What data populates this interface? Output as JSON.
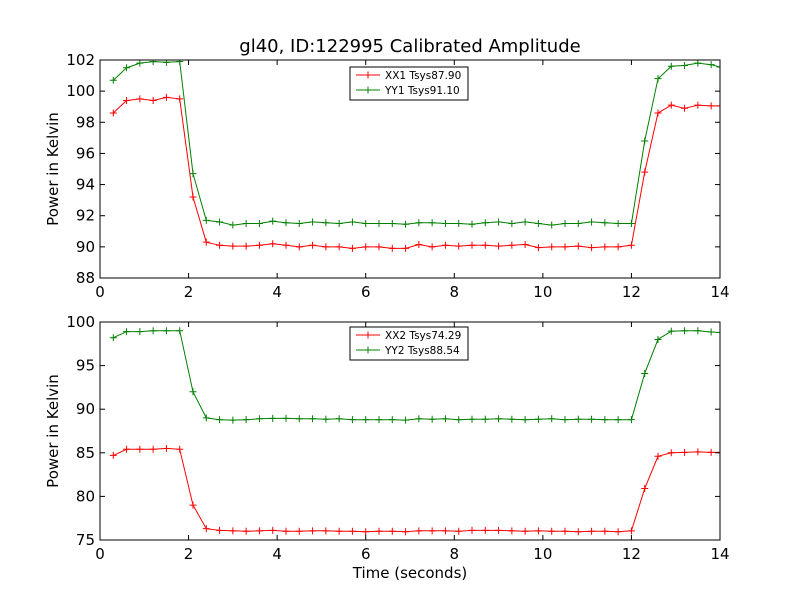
{
  "chart_data": {
    "title": "gl40, ID:122995 Calibrated Amplitude",
    "xlabel": "Time (seconds)",
    "colors": {
      "red": "#ff0000",
      "green": "#008000"
    },
    "x": [
      0.3,
      0.6,
      0.9,
      1.2,
      1.5,
      1.8,
      2.1,
      2.4,
      2.7,
      3.0,
      3.3,
      3.6,
      3.9,
      4.2,
      4.5,
      4.8,
      5.1,
      5.4,
      5.7,
      6.0,
      6.3,
      6.6,
      6.9,
      7.2,
      7.5,
      7.8,
      8.1,
      8.4,
      8.7,
      9.0,
      9.3,
      9.6,
      9.9,
      10.2,
      10.5,
      10.8,
      11.1,
      11.4,
      11.7,
      12.0,
      12.3,
      12.6,
      12.9,
      13.2,
      13.5,
      13.8,
      14.0
    ],
    "subplots": [
      {
        "type": "line",
        "ylabel": "Power in Kelvin",
        "xlim": [
          0,
          14
        ],
        "ylim": [
          88,
          102
        ],
        "xticks": [
          "0",
          "2",
          "4",
          "6",
          "8",
          "10",
          "12",
          "14"
        ],
        "yticks": [
          "88",
          "90",
          "92",
          "94",
          "96",
          "98",
          "100",
          "102"
        ],
        "series": [
          {
            "name": "XX1 Tsys87.90",
            "color": "#ff0000",
            "values": [
              98.6,
              99.4,
              99.5,
              99.4,
              99.6,
              99.5,
              93.2,
              90.3,
              90.1,
              90.05,
              90.05,
              90.1,
              90.2,
              90.1,
              90.0,
              90.1,
              90.0,
              90.0,
              89.9,
              90.0,
              90.0,
              89.9,
              89.9,
              90.15,
              90.0,
              90.1,
              90.05,
              90.1,
              90.1,
              90.05,
              90.1,
              90.15,
              89.95,
              90.0,
              90.0,
              90.05,
              89.95,
              90.0,
              90.0,
              90.1,
              94.8,
              98.6,
              99.1,
              98.9,
              99.1,
              99.05,
              99.05
            ]
          },
          {
            "name": "YY1 Tsys91.10",
            "color": "#008000",
            "values": [
              100.7,
              101.5,
              101.8,
              101.9,
              101.85,
              101.9,
              94.7,
              91.7,
              91.6,
              91.4,
              91.5,
              91.5,
              91.65,
              91.55,
              91.5,
              91.6,
              91.55,
              91.5,
              91.6,
              91.5,
              91.5,
              91.5,
              91.45,
              91.55,
              91.55,
              91.5,
              91.5,
              91.45,
              91.55,
              91.6,
              91.5,
              91.6,
              91.5,
              91.4,
              91.5,
              91.5,
              91.6,
              91.55,
              91.5,
              91.5,
              96.8,
              100.8,
              101.6,
              101.65,
              101.8,
              101.7,
              101.55
            ]
          }
        ]
      },
      {
        "type": "line",
        "ylabel": "Power in Kelvin",
        "xlim": [
          0,
          14
        ],
        "ylim": [
          75,
          100
        ],
        "xticks": [
          "0",
          "2",
          "4",
          "6",
          "8",
          "10",
          "12",
          "14"
        ],
        "yticks": [
          "75",
          "80",
          "85",
          "90",
          "95",
          "100"
        ],
        "series": [
          {
            "name": "XX2 Tsys74.29",
            "color": "#ff0000",
            "values": [
              84.7,
              85.4,
              85.4,
              85.4,
              85.5,
              85.4,
              79.0,
              76.3,
              76.1,
              76.05,
              76.0,
              76.05,
              76.1,
              76.0,
              76.0,
              76.05,
              76.05,
              76.0,
              76.0,
              75.95,
              76.0,
              76.0,
              75.95,
              76.05,
              76.05,
              76.05,
              76.0,
              76.1,
              76.1,
              76.1,
              76.05,
              76.0,
              76.05,
              76.0,
              76.0,
              75.95,
              76.0,
              76.0,
              75.95,
              76.05,
              80.9,
              84.6,
              85.0,
              85.05,
              85.1,
              85.05,
              85.05
            ]
          },
          {
            "name": "YY2 Tsys88.54",
            "color": "#008000",
            "values": [
              98.2,
              98.9,
              98.9,
              99.0,
              99.0,
              99.0,
              92.0,
              89.0,
              88.8,
              88.75,
              88.8,
              88.9,
              88.95,
              88.95,
              88.9,
              88.9,
              88.85,
              88.9,
              88.8,
              88.8,
              88.8,
              88.8,
              88.75,
              88.9,
              88.85,
              88.9,
              88.8,
              88.85,
              88.85,
              88.9,
              88.85,
              88.8,
              88.85,
              88.9,
              88.8,
              88.85,
              88.85,
              88.8,
              88.8,
              88.8,
              94.1,
              98.0,
              98.95,
              99.0,
              99.0,
              98.85,
              98.8
            ]
          }
        ]
      }
    ]
  }
}
